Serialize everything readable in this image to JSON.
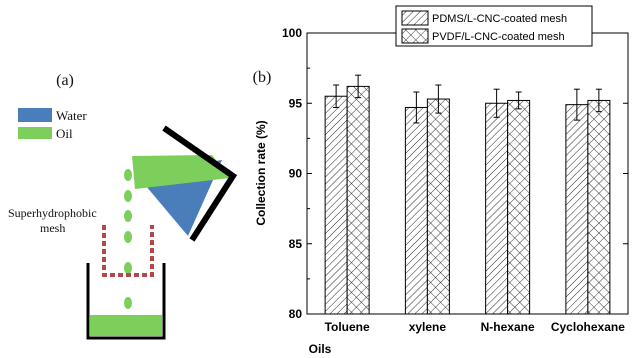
{
  "panel_a": {
    "label": "(a)",
    "legend": [
      {
        "name": "Water",
        "color": "#4a7ebb"
      },
      {
        "name": "Oil",
        "color": "#7ccf5a"
      }
    ],
    "mesh_label_line1": "Superhydrophobic",
    "mesh_label_line2": "mesh",
    "mesh_color": "#b04a4a"
  },
  "panel_b": {
    "label": "(b)"
  },
  "chart_data": {
    "type": "bar",
    "title": "",
    "xlabel": "Oils",
    "ylabel": "Collection rate (%)",
    "categories": [
      "Toluene",
      "xylene",
      "N-hexane",
      "Cyclohexane"
    ],
    "ylim": [
      80,
      100
    ],
    "yticks": [
      "80",
      "85",
      "90",
      "95",
      "100"
    ],
    "legend_position": "top-right",
    "series": [
      {
        "name": "PDMS/L-CNC-coated mesh",
        "pattern": "diagonal-hatch",
        "values": [
          95.5,
          94.7,
          95.0,
          94.9
        ],
        "errors": [
          0.8,
          1.1,
          1.0,
          1.1
        ]
      },
      {
        "name": "PVDF/L-CNC-coated mesh",
        "pattern": "cross-hatch",
        "values": [
          96.2,
          95.3,
          95.2,
          95.2
        ],
        "errors": [
          0.8,
          1.0,
          0.6,
          0.8
        ]
      }
    ]
  }
}
